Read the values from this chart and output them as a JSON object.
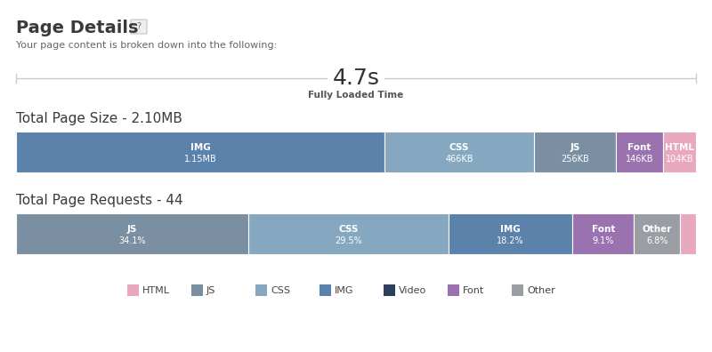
{
  "title": "Page Details",
  "subtitle": "Your page content is broken down into the following:",
  "loaded_time": "4.7s",
  "loaded_label": "Fully Loaded Time",
  "size_title": "Total Page Size - 2.10MB",
  "requests_title": "Total Page Requests - 44",
  "size_bars": [
    {
      "label": "IMG",
      "sublabel": "1.15MB",
      "value": 1150,
      "color": "#5b82aa"
    },
    {
      "label": "CSS",
      "sublabel": "466KB",
      "value": 466,
      "color": "#85a8c0"
    },
    {
      "label": "JS",
      "sublabel": "256KB",
      "value": 256,
      "color": "#7a8fa2"
    },
    {
      "label": "Font",
      "sublabel": "146KB",
      "value": 146,
      "color": "#9b72b0"
    },
    {
      "label": "HTML",
      "sublabel": "104KB",
      "value": 104,
      "color": "#e8a8c0"
    }
  ],
  "req_bars": [
    {
      "label": "JS",
      "sublabel": "34.1%",
      "value": 34.1,
      "color": "#7a8fa2"
    },
    {
      "label": "CSS",
      "sublabel": "29.5%",
      "value": 29.5,
      "color": "#85a8c0"
    },
    {
      "label": "IMG",
      "sublabel": "18.2%",
      "value": 18.2,
      "color": "#5b82aa"
    },
    {
      "label": "Font",
      "sublabel": "9.1%",
      "value": 9.1,
      "color": "#9b72b0"
    },
    {
      "label": "Other",
      "sublabel": "6.8%",
      "value": 6.8,
      "color": "#9a9ea4"
    },
    {
      "label": "",
      "sublabel": "",
      "value": 2.3,
      "color": "#e8a8c0"
    }
  ],
  "legend": [
    {
      "label": "HTML",
      "color": "#e8a8c0"
    },
    {
      "label": "JS",
      "color": "#7a8fa2"
    },
    {
      "label": "CSS",
      "color": "#85a8c0"
    },
    {
      "label": "IMG",
      "color": "#5b82aa"
    },
    {
      "label": "Video",
      "color": "#2d3e5f"
    },
    {
      "label": "Font",
      "color": "#9b72b0"
    },
    {
      "label": "Other",
      "color": "#9a9ea4"
    }
  ],
  "bg_color": "#ffffff",
  "text_color": "#3a3a3a"
}
